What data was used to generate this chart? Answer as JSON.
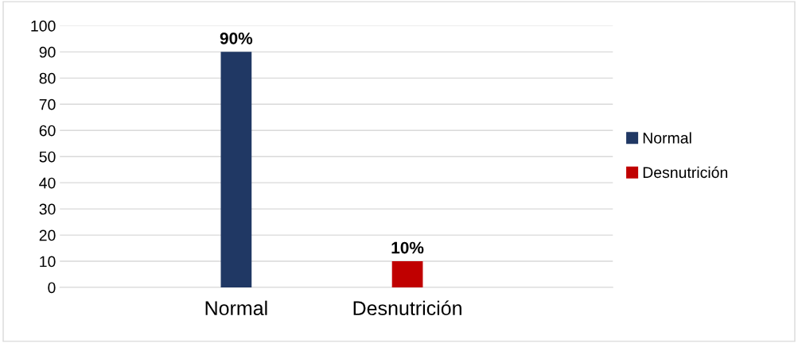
{
  "chart_data": {
    "type": "bar",
    "categories": [
      "Normal",
      "Desnutrición"
    ],
    "series": [
      {
        "name": "Normal",
        "color": "#203864",
        "values": [
          90,
          null
        ],
        "value_labels": [
          "90%",
          null
        ]
      },
      {
        "name": "Desnutrición",
        "color": "#c00000",
        "values": [
          null,
          10
        ],
        "value_labels": [
          null,
          "10%"
        ]
      }
    ],
    "ylim": [
      0,
      100
    ],
    "yticks": [
      0,
      10,
      20,
      30,
      40,
      50,
      60,
      70,
      80,
      90,
      100
    ],
    "grid": "y",
    "legend": "right"
  }
}
